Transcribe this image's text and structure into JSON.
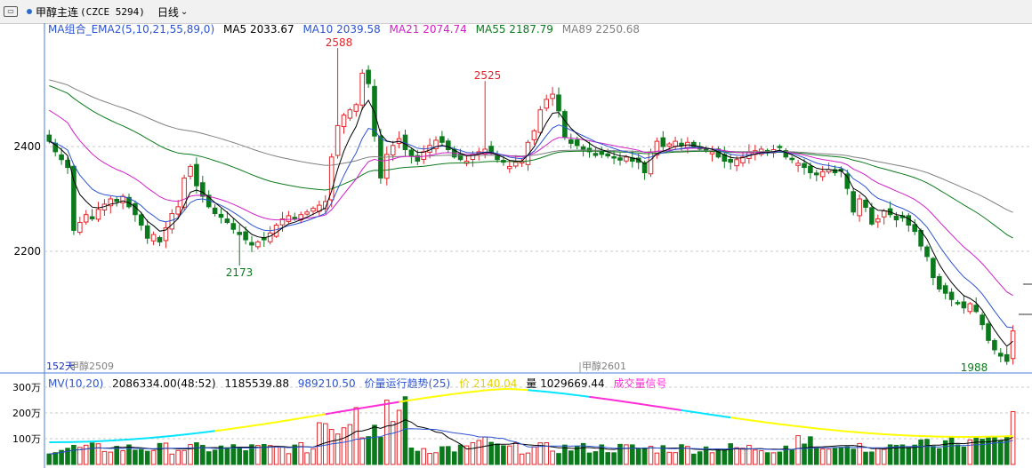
{
  "header": {
    "title": "甲醇主连",
    "code": "(CZCE 5294)",
    "period": "日线"
  },
  "main_legend": {
    "group_label": "MA组合_EMA2(5,10,21,55,89,0)",
    "ma5": "MA5 2033.67",
    "ma10": "MA10 2039.58",
    "ma21": "MA21 2074.74",
    "ma55": "MA55 2187.79",
    "ma89": "MA89 2250.68"
  },
  "volume_legend": {
    "group_label": "MV(10,20)",
    "v1": "2086334.00(48:52)",
    "v2": "1185539.88",
    "v3": "989210.50",
    "trend": "价量运行趋势(25)",
    "price": "价 2140.04",
    "vol": "量 1029669.44",
    "signal": "成交量信号"
  },
  "chart_annotations": {
    "days": "152天",
    "contract_left": "甲醇2509",
    "contract_mid": "甲醇2601"
  },
  "colors": {
    "up": "#e0262a",
    "down": "#0b7a1c",
    "ma5": "#000000",
    "ma10": "#2c53d0",
    "ma21": "#d021c6",
    "ma55": "#0b7a1c",
    "ma89": "#808080",
    "grid": "#c8c8c8",
    "axis": "#4a7fd8",
    "vol_trend_a": "#ffff00",
    "vol_trend_b": "#00e5ff",
    "vol_trend_c": "#ff2bd6"
  },
  "chart_data": [
    {
      "type": "candlestick",
      "title": "甲醇主连",
      "ylim": [
        1960,
        2600
      ],
      "yticks": [
        2200,
        2400
      ],
      "annotations": [
        {
          "label": "2588",
          "type": "high"
        },
        {
          "label": "2525",
          "type": "high"
        },
        {
          "label": "2173",
          "type": "low"
        },
        {
          "label": "1988",
          "type": "low"
        }
      ],
      "closes": [
        2410,
        2390,
        2375,
        2360,
        2240,
        2255,
        2270,
        2262,
        2280,
        2290,
        2300,
        2295,
        2305,
        2285,
        2270,
        2250,
        2225,
        2232,
        2218,
        2245,
        2272,
        2285,
        2340,
        2362,
        2325,
        2305,
        2285,
        2272,
        2265,
        2255,
        2242,
        2232,
        2222,
        2212,
        2218,
        2222,
        2235,
        2250,
        2262,
        2268,
        2262,
        2270,
        2275,
        2282,
        2288,
        2295,
        2380,
        2440,
        2460,
        2470,
        2480,
        2540,
        2520,
        2420,
        2340,
        2385,
        2402,
        2415,
        2394,
        2382,
        2372,
        2390,
        2402,
        2412,
        2408,
        2394,
        2380,
        2375,
        2372,
        2385,
        2390,
        2395,
        2388,
        2375,
        2370,
        2362,
        2370,
        2372,
        2408,
        2430,
        2470,
        2490,
        2500,
        2468,
        2418,
        2406,
        2402,
        2395,
        2390,
        2383,
        2385,
        2382,
        2378,
        2374,
        2380,
        2372,
        2370,
        2350,
        2390,
        2410,
        2400,
        2405,
        2410,
        2402,
        2408,
        2400,
        2395,
        2392,
        2390,
        2380,
        2372,
        2370,
        2375,
        2380,
        2390,
        2392,
        2395,
        2388,
        2394,
        2398,
        2380,
        2375,
        2368,
        2360,
        2350,
        2346,
        2352,
        2356,
        2350,
        2353,
        2320,
        2275,
        2300,
        2284,
        2252,
        2262,
        2277,
        2270,
        2260,
        2264,
        2250,
        2238,
        2210,
        2190,
        2150,
        2128,
        2120,
        2108,
        2100,
        2092,
        2100,
        2085,
        2060,
        2030,
        2012,
        2000,
        1990,
        2048
      ],
      "series": [
        {
          "name": "MA5",
          "value": 2033.67
        },
        {
          "name": "MA10",
          "value": 2039.58
        },
        {
          "name": "MA21",
          "value": 2074.74
        },
        {
          "name": "MA55",
          "value": 2187.79
        },
        {
          "name": "MA89",
          "value": 2250.68
        }
      ]
    },
    {
      "type": "bar",
      "title": "MV(10,20)",
      "ylim": [
        0,
        300
      ],
      "yticks": [
        100,
        200,
        300
      ],
      "ytick_labels": [
        "100万",
        "200万",
        "300万"
      ],
      "series": [
        {
          "name": "MV(10,20)",
          "value": 2086334.0
        },
        {
          "name": "价",
          "value": 2140.04
        },
        {
          "name": "量",
          "value": 1029669.44
        }
      ]
    }
  ]
}
